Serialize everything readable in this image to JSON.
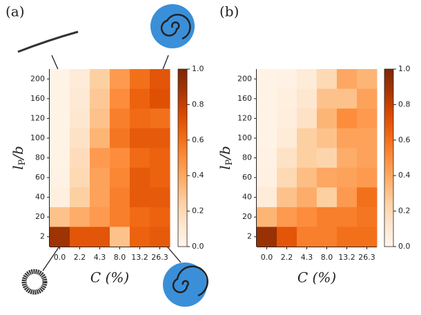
{
  "chart_data": [
    {
      "type": "heatmap",
      "panel_label": "(a)",
      "x_label": "C (%)",
      "y_label": [
        "l",
        "P",
        "/b"
      ],
      "categories": [
        "0.0",
        "2.2",
        "4.3",
        "8.0",
        "13.2",
        "26.3"
      ],
      "rows": [
        "200",
        "160",
        "120",
        "100",
        "80",
        "60",
        "40",
        "20",
        "2"
      ],
      "values": [
        [
          0.02,
          0.08,
          0.25,
          0.45,
          0.6,
          0.7
        ],
        [
          0.02,
          0.1,
          0.28,
          0.5,
          0.65,
          0.72
        ],
        [
          0.02,
          0.12,
          0.3,
          0.55,
          0.62,
          0.6
        ],
        [
          0.02,
          0.15,
          0.35,
          0.58,
          0.68,
          0.68
        ],
        [
          0.02,
          0.18,
          0.45,
          0.5,
          0.62,
          0.65
        ],
        [
          0.03,
          0.2,
          0.42,
          0.52,
          0.68,
          0.65
        ],
        [
          0.05,
          0.25,
          0.42,
          0.55,
          0.68,
          0.68
        ],
        [
          0.3,
          0.38,
          0.45,
          0.55,
          0.62,
          0.65
        ],
        [
          0.9,
          0.7,
          0.7,
          0.3,
          0.65,
          0.68
        ]
      ],
      "colorbar": {
        "cmap": "Oranges",
        "lim": [
          0,
          1
        ],
        "ticks": [
          {
            "value": 0,
            "label": "0.0"
          },
          {
            "value": 0.2,
            "label": "0.2"
          },
          {
            "value": 0.4,
            "label": "0.4"
          },
          {
            "value": 0.6,
            "label": "0.6"
          },
          {
            "value": 0.8,
            "label": "0.8"
          },
          {
            "value": 1,
            "label": "1.0"
          }
        ]
      }
    },
    {
      "type": "heatmap",
      "panel_label": "(b)",
      "x_label": "C (%)",
      "y_label": [
        "l",
        "P",
        "/b"
      ],
      "categories": [
        "0.0",
        "2.2",
        "4.3",
        "8.0",
        "13.2",
        "26.3"
      ],
      "rows": [
        "200",
        "160",
        "120",
        "100",
        "80",
        "60",
        "40",
        "20",
        "2"
      ],
      "values": [
        [
          0.02,
          0.03,
          0.08,
          0.2,
          0.4,
          0.35
        ],
        [
          0.02,
          0.05,
          0.12,
          0.3,
          0.3,
          0.42
        ],
        [
          0.02,
          0.06,
          0.15,
          0.35,
          0.5,
          0.45
        ],
        [
          0.02,
          0.08,
          0.25,
          0.3,
          0.42,
          0.42
        ],
        [
          0.03,
          0.15,
          0.25,
          0.22,
          0.38,
          0.42
        ],
        [
          0.04,
          0.2,
          0.32,
          0.4,
          0.42,
          0.45
        ],
        [
          0.08,
          0.3,
          0.38,
          0.25,
          0.45,
          0.6
        ],
        [
          0.35,
          0.45,
          0.5,
          0.55,
          0.55,
          0.58
        ],
        [
          0.92,
          0.7,
          0.55,
          0.55,
          0.6,
          0.6
        ]
      ],
      "colorbar": {
        "cmap": "Oranges",
        "lim": [
          0,
          1
        ],
        "ticks": [
          {
            "value": 0,
            "label": "0.0"
          },
          {
            "value": 0.2,
            "label": "0.2"
          },
          {
            "value": 0.4,
            "label": "0.4"
          },
          {
            "value": 0.6,
            "label": "0.6"
          },
          {
            "value": 0.8,
            "label": "0.8"
          },
          {
            "value": 1,
            "label": "1.0"
          }
        ]
      }
    }
  ]
}
